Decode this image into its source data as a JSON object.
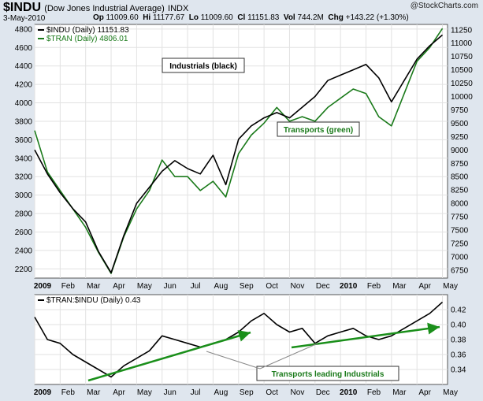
{
  "header": {
    "symbol": "$INDU",
    "name": "(Dow Jones Industrial Average)",
    "exchange": "INDX",
    "date": "3-May-2010",
    "op_label": "Op",
    "op": "11009.60",
    "hi_label": "Hi",
    "hi": "11177.67",
    "lo_label": "Lo",
    "lo": "11009.60",
    "cl_label": "Cl",
    "cl": "11151.83",
    "vol_label": "Vol",
    "vol": "744.2M",
    "chg_label": "Chg",
    "chg": "+143.22 (+1.30%)",
    "credit": "@StockCharts.com"
  },
  "chart_data": [
    {
      "type": "line",
      "legend": [
        {
          "text": "$INDU (Daily) 11151.83",
          "color": "#000000"
        },
        {
          "text": "$TRAN (Daily) 4806.01",
          "color": "#1a7a1a"
        }
      ],
      "left_axis": {
        "ticks": [
          2200,
          2400,
          2600,
          2800,
          3000,
          3200,
          3400,
          3600,
          3800,
          4000,
          4200,
          4400,
          4600,
          4800
        ]
      },
      "right_axis": {
        "ticks": [
          6750,
          7000,
          7250,
          7500,
          7750,
          8000,
          8250,
          8500,
          8750,
          9000,
          9250,
          9500,
          9750,
          10000,
          10250,
          10500,
          10750,
          11000,
          11250
        ]
      },
      "x_labels": [
        "2009",
        "Feb",
        "Mar",
        "Apr",
        "May",
        "Jun",
        "Jul",
        "Aug",
        "Sep",
        "Oct",
        "Nov",
        "Dec",
        "2010",
        "Feb",
        "Mar",
        "Apr",
        "May"
      ],
      "series": [
        {
          "name": "$INDU (Daily) 11151.83",
          "color": "#000000",
          "axis": "right",
          "x": [
            0,
            0.5,
            1,
            1.5,
            2,
            2.5,
            3,
            3.5,
            4,
            4.5,
            5,
            5.5,
            6,
            6.5,
            7,
            7.5,
            8,
            8.5,
            9,
            9.5,
            10,
            10.5,
            11,
            11.5,
            12,
            12.5,
            13,
            13.5,
            14,
            14.5,
            15,
            15.5,
            16
          ],
          "values": [
            9000,
            8550,
            8200,
            7900,
            7650,
            7100,
            6700,
            7400,
            8000,
            8300,
            8600,
            8800,
            8650,
            8550,
            8900,
            8350,
            9200,
            9450,
            9600,
            9700,
            9600,
            9800,
            10000,
            10300,
            10400,
            10500,
            10600,
            10350,
            9900,
            10300,
            10700,
            10950,
            11151.83
          ]
        },
        {
          "name": "$TRAN (Daily) 4806.01",
          "color": "#1a7a1a",
          "axis": "left",
          "x": [
            0,
            0.5,
            1,
            1.5,
            2,
            2.5,
            3,
            3.5,
            4,
            4.5,
            5,
            5.5,
            6,
            6.5,
            7,
            7.5,
            8,
            8.5,
            9,
            9.5,
            10,
            10.5,
            11,
            11.5,
            12,
            12.5,
            13,
            13.5,
            14,
            14.5,
            15,
            15.5,
            16
          ],
          "values": [
            3700,
            3250,
            3050,
            2850,
            2650,
            2380,
            2150,
            2550,
            2850,
            3050,
            3380,
            3200,
            3200,
            3050,
            3150,
            2980,
            3450,
            3650,
            3780,
            3950,
            3800,
            3850,
            3800,
            3950,
            4050,
            4150,
            4100,
            3850,
            3750,
            4100,
            4450,
            4600,
            4806.01
          ]
        }
      ],
      "annotations": [
        {
          "text": "Industrials (black)",
          "color": "#000000"
        },
        {
          "text": "Transports (green)",
          "color": "#1a7a1a"
        }
      ]
    },
    {
      "type": "line",
      "legend": [
        {
          "text": "$TRAN:$INDU (Daily) 0.43",
          "color": "#000000"
        }
      ],
      "right_axis": {
        "ticks": [
          0.34,
          0.36,
          0.38,
          0.4,
          0.42
        ]
      },
      "x_labels": [
        "2009",
        "Feb",
        "Mar",
        "Apr",
        "May",
        "Jun",
        "Jul",
        "Aug",
        "Sep",
        "Oct",
        "Nov",
        "Dec",
        "2010",
        "Feb",
        "Mar",
        "Apr",
        "May"
      ],
      "series": [
        {
          "name": "$TRAN:$INDU (Daily) 0.43",
          "color": "#000000",
          "x": [
            0,
            0.5,
            1,
            1.5,
            2,
            2.5,
            3,
            3.5,
            4,
            4.5,
            5,
            5.5,
            6,
            6.5,
            7,
            7.5,
            8,
            8.5,
            9,
            9.5,
            10,
            10.5,
            11,
            11.5,
            12,
            12.5,
            13,
            13.5,
            14,
            14.5,
            15,
            15.5,
            16
          ],
          "values": [
            0.41,
            0.38,
            0.375,
            0.36,
            0.35,
            0.34,
            0.33,
            0.345,
            0.355,
            0.365,
            0.385,
            0.38,
            0.375,
            0.37,
            0.375,
            0.38,
            0.39,
            0.405,
            0.415,
            0.4,
            0.39,
            0.395,
            0.375,
            0.385,
            0.39,
            0.395,
            0.385,
            0.38,
            0.385,
            0.395,
            0.405,
            0.415,
            0.43
          ]
        }
      ],
      "annotations": [
        {
          "text": "Transports leading Industrials",
          "color": "#1a7a1a"
        }
      ]
    }
  ]
}
